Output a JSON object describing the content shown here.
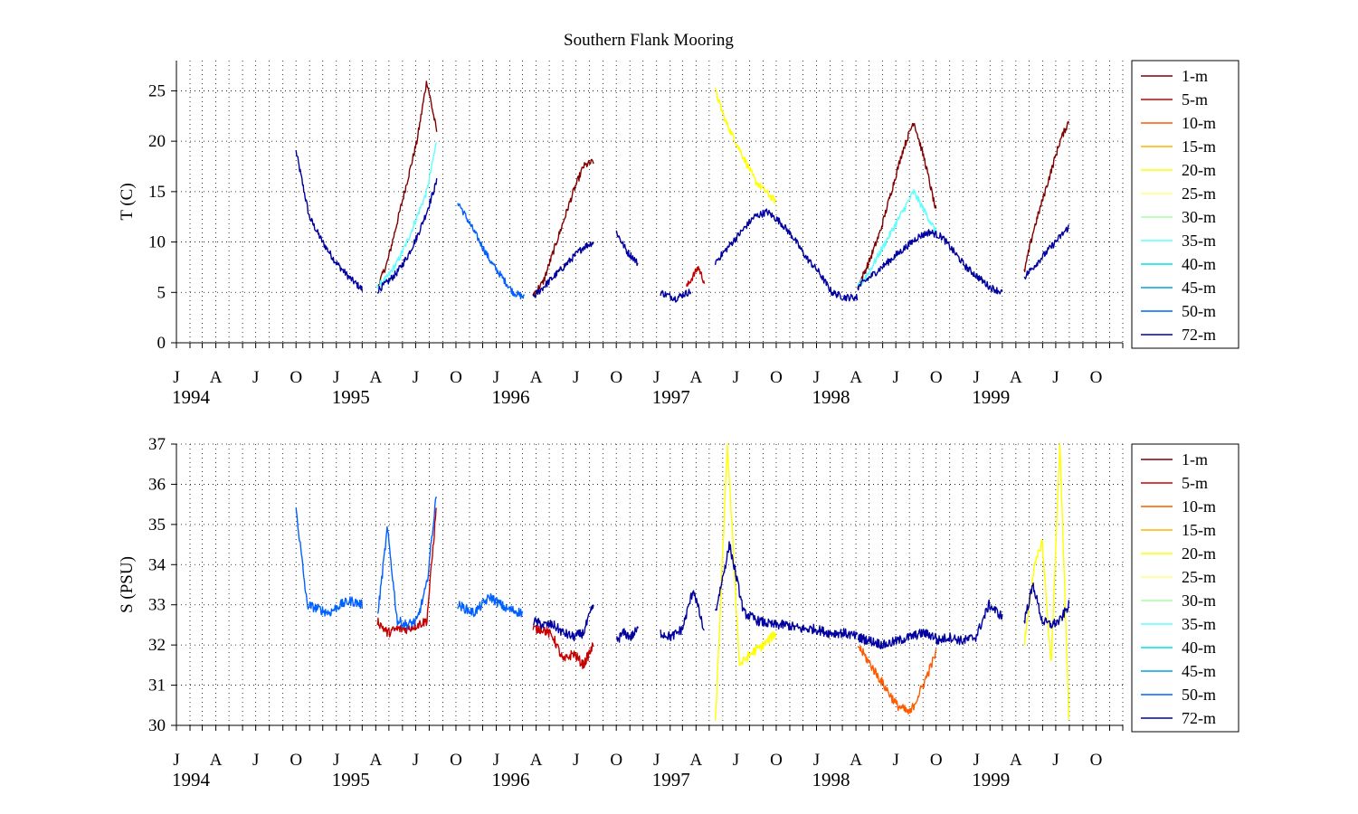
{
  "figure_title": "Southern Flank Mooring",
  "chart_data": [
    {
      "type": "line",
      "ylabel": "T (C)",
      "ylim": [
        0,
        28
      ],
      "yticks": [
        0,
        5,
        10,
        15,
        20,
        25
      ],
      "legend_placement": "outside-right",
      "grid": "dotted",
      "segments": [
        {
          "start": "1994-10-01",
          "end": "1995-03-01",
          "series": "72-m",
          "points": [
            19,
            12.5,
            10,
            8,
            6.5,
            5.3
          ]
        },
        {
          "start": "1995-04-05",
          "end": "1995-08-18",
          "series": "1-m",
          "points": [
            5.5,
            8,
            12,
            16,
            20,
            26,
            21
          ]
        },
        {
          "start": "1995-04-05",
          "end": "1995-08-18",
          "series": "35-m",
          "points": [
            5.5,
            6.5,
            8,
            10,
            12.5,
            15,
            20
          ]
        },
        {
          "start": "1995-04-05",
          "end": "1995-08-18",
          "series": "72-m",
          "points": [
            5.2,
            6,
            7,
            8.5,
            10.5,
            13,
            16
          ]
        },
        {
          "start": "1995-10-05",
          "end": "1996-03-05",
          "series": "50-m",
          "points": [
            14,
            12,
            10,
            8,
            6.5,
            5,
            4.5
          ]
        },
        {
          "start": "1996-03-25",
          "end": "1996-08-10",
          "series": "1-m",
          "points": [
            4.8,
            6,
            9,
            12,
            15,
            17.5,
            18
          ]
        },
        {
          "start": "1996-03-25",
          "end": "1996-08-10",
          "series": "72-m",
          "points": [
            4.5,
            5.5,
            6.5,
            7.5,
            8.5,
            9.5,
            10
          ]
        },
        {
          "start": "1996-10-01",
          "end": "1996-11-20",
          "series": "72-m",
          "points": [
            11,
            10,
            9,
            8.5,
            7.8
          ]
        },
        {
          "start": "1997-01-10",
          "end": "1997-03-20",
          "series": "72-m",
          "points": [
            5,
            4.7,
            4.4,
            4.8,
            5.1
          ]
        },
        {
          "start": "1997-03-10",
          "end": "1997-04-20",
          "series": "5-m",
          "points": [
            5.5,
            6.5,
            7.5,
            6
          ]
        },
        {
          "start": "1997-05-15",
          "end": "1997-09-30",
          "series": "20-m",
          "points": [
            25,
            22,
            20,
            18,
            16,
            15,
            14
          ]
        },
        {
          "start": "1997-05-15",
          "end": "1998-04-05",
          "series": "72-m",
          "points": [
            8,
            9.5,
            11,
            12.5,
            13,
            12,
            10.5,
            8.5,
            7,
            5,
            4.5,
            4.5
          ]
        },
        {
          "start": "1998-04-05",
          "end": "1998-10-01",
          "series": "1-m",
          "points": [
            5.5,
            8,
            11,
            15,
            19,
            22,
            18,
            13
          ]
        },
        {
          "start": "1998-04-05",
          "end": "1998-10-01",
          "series": "35-m",
          "points": [
            5.5,
            7,
            9,
            11,
            13,
            15,
            13,
            11
          ]
        },
        {
          "start": "1998-04-05",
          "end": "1999-03-01",
          "series": "72-m",
          "points": [
            5.5,
            6.5,
            7.5,
            8.5,
            9.5,
            10.5,
            11,
            10.5,
            9,
            7.5,
            6.5,
            5.5,
            5
          ]
        },
        {
          "start": "1999-04-20",
          "end": "1999-07-31",
          "series": "1-m",
          "points": [
            7,
            11,
            14,
            17,
            20,
            22
          ]
        },
        {
          "start": "1999-04-20",
          "end": "1999-07-31",
          "series": "72-m",
          "points": [
            6.5,
            7.5,
            8.5,
            9.5,
            10.5,
            11.5
          ]
        }
      ]
    },
    {
      "type": "line",
      "ylabel": "S (PSU)",
      "ylim": [
        30,
        37
      ],
      "yticks": [
        30,
        31,
        32,
        33,
        34,
        35,
        36,
        37
      ],
      "legend_placement": "outside-right",
      "grid": "dotted",
      "segments": [
        {
          "start": "1994-10-01",
          "end": "1995-03-01",
          "series": "50-m",
          "points": [
            35.4,
            33,
            32.9,
            32.8,
            33,
            33.1,
            33
          ]
        },
        {
          "start": "1995-04-05",
          "end": "1995-08-18",
          "series": "5-m",
          "points": [
            32.6,
            32.3,
            32.4,
            32.4,
            32.5,
            32.6,
            35.5
          ]
        },
        {
          "start": "1995-04-05",
          "end": "1995-08-18",
          "series": "50-m",
          "points": [
            32.7,
            34.9,
            32.6,
            32.5,
            32.6,
            33.5,
            35.8
          ]
        },
        {
          "start": "1995-10-05",
          "end": "1996-03-01",
          "series": "50-m",
          "points": [
            33,
            32.8,
            33.2,
            32.9,
            32.8
          ]
        },
        {
          "start": "1996-03-25",
          "end": "1996-08-10",
          "series": "5-m",
          "points": [
            32.4,
            32.4,
            32.2,
            31.6,
            31.8,
            31.5,
            32
          ]
        },
        {
          "start": "1996-03-25",
          "end": "1996-08-10",
          "series": "72-m",
          "points": [
            32.6,
            32.5,
            32.5,
            32.3,
            32.2,
            32.3,
            33
          ]
        },
        {
          "start": "1996-10-01",
          "end": "1996-11-20",
          "series": "72-m",
          "points": [
            32.1,
            32.3,
            32.2,
            32.4
          ]
        },
        {
          "start": "1997-01-10",
          "end": "1997-04-20",
          "series": "72-m",
          "points": [
            32.3,
            32.2,
            32.4,
            33.4,
            32.3
          ]
        },
        {
          "start": "1997-05-15",
          "end": "1997-09-30",
          "series": "20-m",
          "points": [
            30,
            37,
            31.5,
            31.8,
            32,
            32.3
          ]
        },
        {
          "start": "1997-05-15",
          "end": "1998-04-05",
          "series": "72-m",
          "points": [
            32.8,
            34.5,
            32.8,
            32.6,
            32.5,
            32.5,
            32.4,
            32.4,
            32.3,
            32.3,
            32.2
          ]
        },
        {
          "start": "1998-04-05",
          "end": "1998-10-01",
          "series": "10-m",
          "points": [
            32,
            31.5,
            31,
            30.5,
            30.3,
            31,
            31.8
          ]
        },
        {
          "start": "1998-04-05",
          "end": "1998-10-01",
          "series": "72-m",
          "points": [
            32.2,
            32.1,
            32,
            32.1,
            32.2,
            32.3,
            32.2
          ]
        },
        {
          "start": "1998-10-01",
          "end": "1999-03-01",
          "series": "72-m",
          "points": [
            32.1,
            32.2,
            32.1,
            32.2,
            33,
            32.7
          ]
        },
        {
          "start": "1999-04-20",
          "end": "1999-07-31",
          "series": "20-m",
          "points": [
            32,
            33.8,
            34.6,
            31.5,
            37,
            30.2
          ]
        },
        {
          "start": "1999-04-20",
          "end": "1999-07-31",
          "series": "72-m",
          "points": [
            32.6,
            33.5,
            32.6,
            32.5,
            32.6,
            33
          ]
        }
      ]
    }
  ],
  "x_axis": {
    "range": [
      "1994-01-01",
      "1999-12-01"
    ],
    "minor_tick_interval": "1 month",
    "grid": "monthly, dotted",
    "month_labels": [
      {
        "date": "1994-01-01",
        "label": "J"
      },
      {
        "date": "1994-04-01",
        "label": "A"
      },
      {
        "date": "1994-07-01",
        "label": "J"
      },
      {
        "date": "1994-10-01",
        "label": "O"
      },
      {
        "date": "1995-01-01",
        "label": "J"
      },
      {
        "date": "1995-04-01",
        "label": "A"
      },
      {
        "date": "1995-07-01",
        "label": "J"
      },
      {
        "date": "1995-10-01",
        "label": "O"
      },
      {
        "date": "1996-01-01",
        "label": "J"
      },
      {
        "date": "1996-04-01",
        "label": "A"
      },
      {
        "date": "1996-07-01",
        "label": "J"
      },
      {
        "date": "1996-10-01",
        "label": "O"
      },
      {
        "date": "1997-01-01",
        "label": "J"
      },
      {
        "date": "1997-04-01",
        "label": "A"
      },
      {
        "date": "1997-07-01",
        "label": "J"
      },
      {
        "date": "1997-10-01",
        "label": "O"
      },
      {
        "date": "1998-01-01",
        "label": "J"
      },
      {
        "date": "1998-04-01",
        "label": "A"
      },
      {
        "date": "1998-07-01",
        "label": "J"
      },
      {
        "date": "1998-10-01",
        "label": "O"
      },
      {
        "date": "1999-01-01",
        "label": "J"
      },
      {
        "date": "1999-04-01",
        "label": "A"
      },
      {
        "date": "1999-07-01",
        "label": "J"
      },
      {
        "date": "1999-10-01",
        "label": "O"
      }
    ],
    "year_labels": [
      {
        "date": "1994-01-01",
        "label": "1994"
      },
      {
        "date": "1995-01-01",
        "label": "1995"
      },
      {
        "date": "1996-01-01",
        "label": "1996"
      },
      {
        "date": "1997-01-01",
        "label": "1997"
      },
      {
        "date": "1998-01-01",
        "label": "1998"
      },
      {
        "date": "1999-01-01",
        "label": "1999"
      }
    ]
  },
  "legend": [
    {
      "label": "1-m",
      "color": "#800000"
    },
    {
      "label": "5-m",
      "color": "#c80000"
    },
    {
      "label": "10-m",
      "color": "#ff5a00"
    },
    {
      "label": "15-m",
      "color": "#ffb400"
    },
    {
      "label": "20-m",
      "color": "#ffff00"
    },
    {
      "label": "25-m",
      "color": "#ffff80"
    },
    {
      "label": "30-m",
      "color": "#a0ffa0"
    },
    {
      "label": "35-m",
      "color": "#60ffff"
    },
    {
      "label": "40-m",
      "color": "#00e0e0"
    },
    {
      "label": "45-m",
      "color": "#00a0e0"
    },
    {
      "label": "50-m",
      "color": "#0060ff"
    },
    {
      "label": "72-m",
      "color": "#0000a0"
    }
  ]
}
